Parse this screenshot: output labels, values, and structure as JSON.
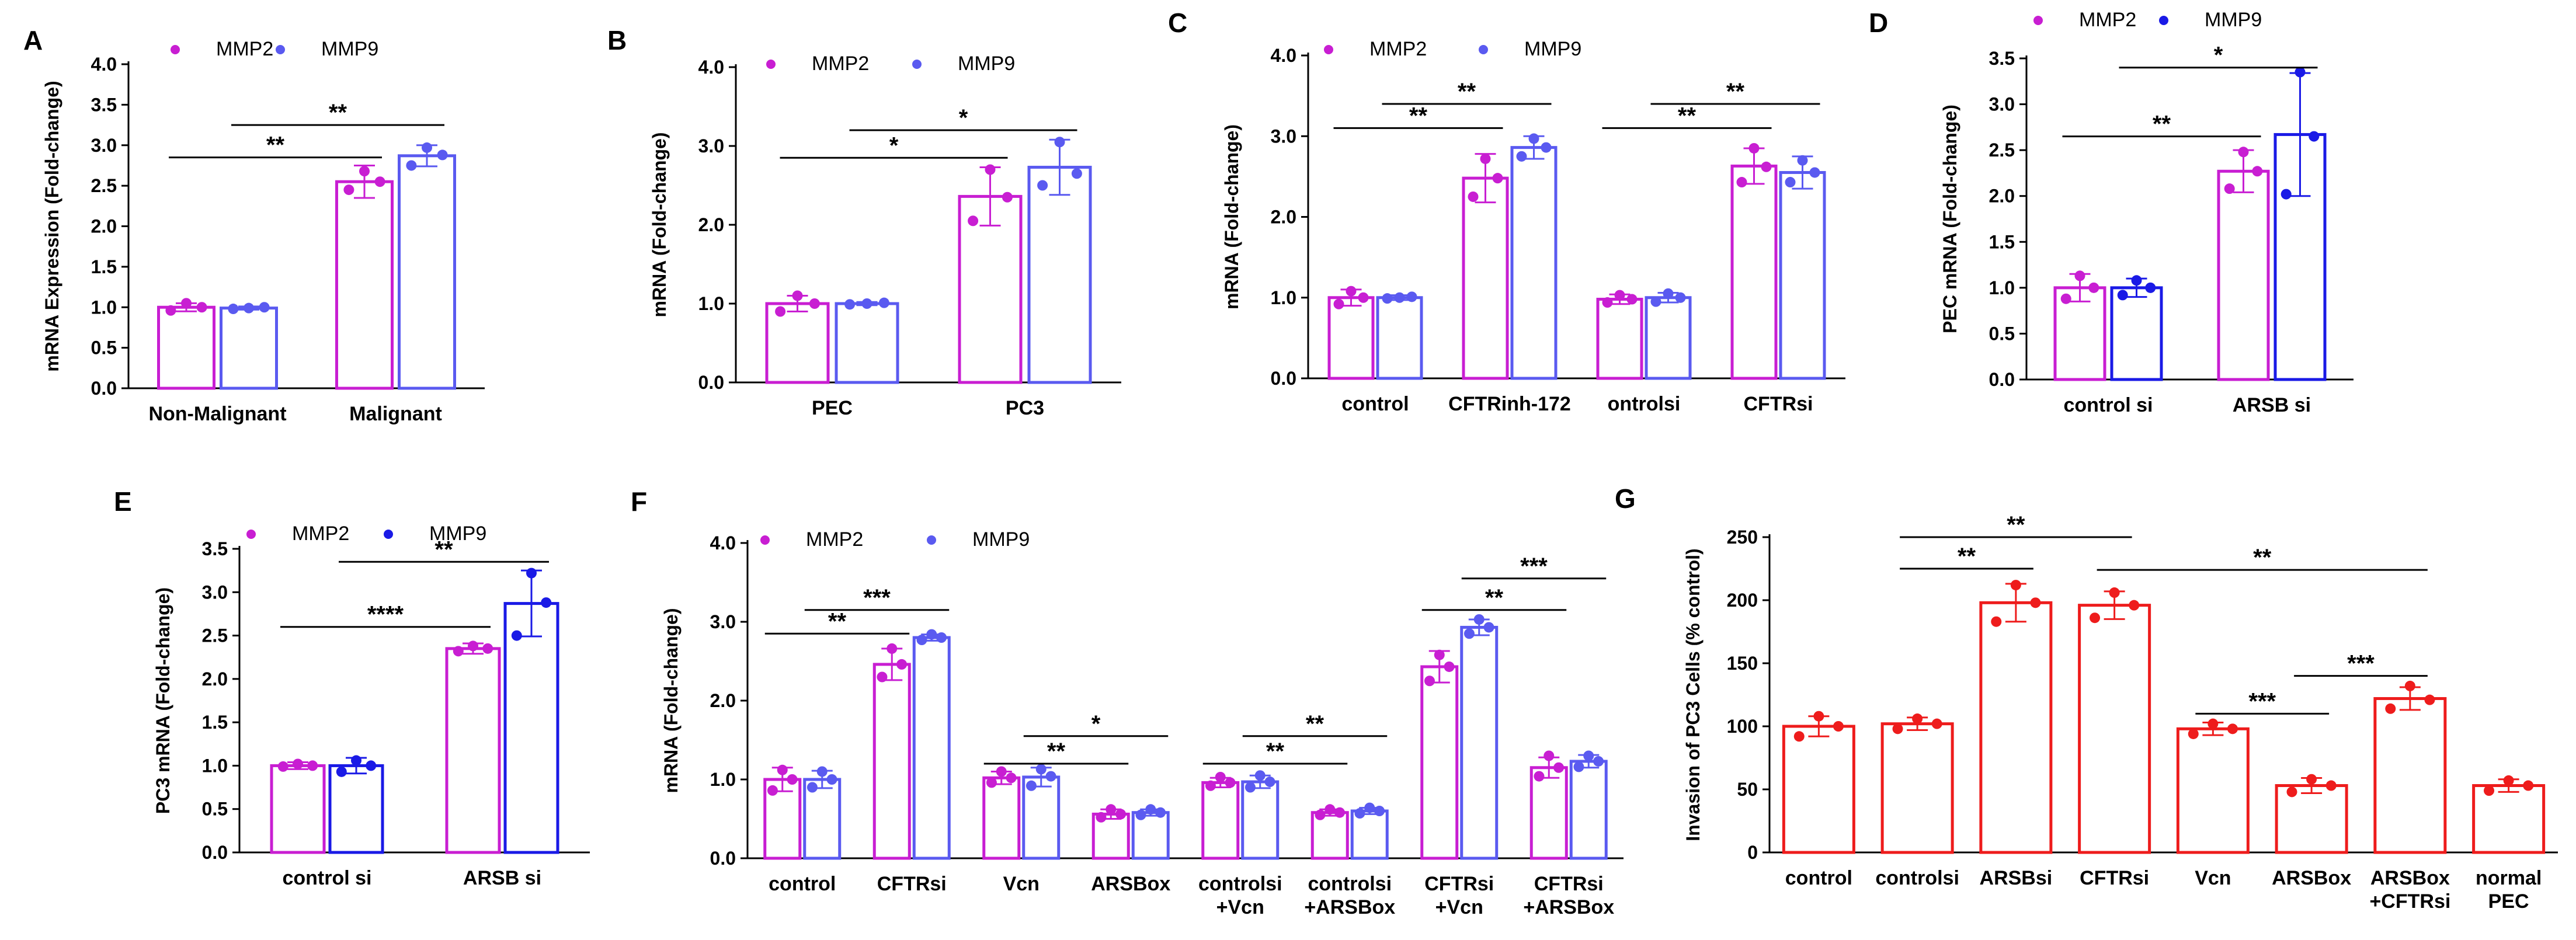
{
  "figure": {
    "background": "#ffffff"
  },
  "chart_data": [
    {
      "panel": "A",
      "type": "bar",
      "ylabel": "mRNA Expression (Fold-change)",
      "ylim": [
        0,
        4.0
      ],
      "yticks": [
        "0.0",
        "0.5",
        "1.0",
        "1.5",
        "2.0",
        "2.5",
        "3.0",
        "3.5",
        "4.0"
      ],
      "categories": [
        "Non-Malignant",
        "Malignant"
      ],
      "series": [
        {
          "name": "MMP2",
          "color": "#c81ed2",
          "values": [
            1.0,
            2.55
          ],
          "err": [
            0.05,
            0.2
          ],
          "points": [
            [
              0.96,
              1.05,
              1.0
            ],
            [
              2.45,
              2.68,
              2.55
            ]
          ]
        },
        {
          "name": "MMP9",
          "color": "#5a5af0",
          "values": [
            0.99,
            2.87
          ],
          "err": [
            0.02,
            0.13
          ],
          "points": [
            [
              0.98,
              0.99,
              1.0
            ],
            [
              2.75,
              2.97,
              2.88
            ]
          ]
        }
      ],
      "annotations": [
        {
          "text": "**",
          "from": [
            0,
            0
          ],
          "to": [
            1,
            0
          ],
          "y": 2.85
        },
        {
          "text": "**",
          "from": [
            0,
            1
          ],
          "to": [
            1,
            1
          ],
          "y": 3.25
        }
      ]
    },
    {
      "panel": "B",
      "type": "bar",
      "ylabel": "mRNA (Fold-change)",
      "ylim": [
        0,
        4.0
      ],
      "yticks": [
        "0.0",
        "1.0",
        "2.0",
        "3.0",
        "4.0"
      ],
      "categories": [
        "PEC",
        "PC3"
      ],
      "series": [
        {
          "name": "MMP2",
          "color": "#c81ed2",
          "values": [
            1.0,
            2.36
          ],
          "err": [
            0.1,
            0.37
          ],
          "points": [
            [
              0.9,
              1.1,
              1.0
            ],
            [
              2.05,
              2.7,
              2.35
            ]
          ]
        },
        {
          "name": "MMP9",
          "color": "#5a5af0",
          "values": [
            1.0,
            2.73
          ],
          "err": [
            0.02,
            0.35
          ],
          "points": [
            [
              0.99,
              1.0,
              1.01
            ],
            [
              2.5,
              3.05,
              2.65
            ]
          ]
        }
      ],
      "annotations": [
        {
          "text": "*",
          "from": [
            0,
            0
          ],
          "to": [
            1,
            0
          ],
          "y": 2.85
        },
        {
          "text": "*",
          "from": [
            0,
            1
          ],
          "to": [
            1,
            1
          ],
          "y": 3.2
        }
      ]
    },
    {
      "panel": "C",
      "type": "bar",
      "ylabel": "mRNA (Fold-change)",
      "ylim": [
        0,
        4.0
      ],
      "yticks": [
        "0.0",
        "1.0",
        "2.0",
        "3.0",
        "4.0"
      ],
      "categories": [
        "control",
        "CFTRinh-172",
        "ontrolsi",
        "CFTRsi"
      ],
      "series": [
        {
          "name": "MMP2",
          "color": "#c81ed2",
          "values": [
            1.0,
            2.48,
            0.98,
            2.63
          ],
          "err": [
            0.1,
            0.3,
            0.06,
            0.22
          ],
          "points": [
            [
              0.92,
              1.08,
              1.0
            ],
            [
              2.25,
              2.72,
              2.48
            ],
            [
              0.94,
              1.03,
              0.98
            ],
            [
              2.43,
              2.85,
              2.62
            ]
          ]
        },
        {
          "name": "MMP9",
          "color": "#5a5af0",
          "values": [
            1.0,
            2.86,
            1.0,
            2.55
          ],
          "err": [
            0.03,
            0.14,
            0.06,
            0.2
          ],
          "points": [
            [
              0.99,
              1.0,
              1.01
            ],
            [
              2.75,
              2.97,
              2.86
            ],
            [
              0.95,
              1.05,
              1.0
            ],
            [
              2.43,
              2.7,
              2.55
            ]
          ]
        }
      ],
      "annotations": [
        {
          "text": "**",
          "from": [
            0,
            0
          ],
          "to": [
            1,
            0
          ],
          "y": 3.1
        },
        {
          "text": "**",
          "from": [
            0,
            1
          ],
          "to": [
            1,
            1
          ],
          "y": 3.4
        },
        {
          "text": "**",
          "from": [
            2,
            0
          ],
          "to": [
            3,
            0
          ],
          "y": 3.1
        },
        {
          "text": "**",
          "from": [
            2,
            1
          ],
          "to": [
            3,
            1
          ],
          "y": 3.4
        }
      ]
    },
    {
      "panel": "D",
      "type": "bar",
      "ylabel": "PEC mRNA (Fold-change)",
      "ylim": [
        0,
        3.5
      ],
      "yticks": [
        "0.0",
        "0.5",
        "1.0",
        "1.5",
        "2.0",
        "2.5",
        "3.0",
        "3.5"
      ],
      "categories": [
        "control si",
        "ARSB si"
      ],
      "series": [
        {
          "name": "MMP2",
          "color": "#c81ed2",
          "values": [
            1.0,
            2.27
          ],
          "err": [
            0.15,
            0.23
          ],
          "points": [
            [
              0.88,
              1.13,
              1.0
            ],
            [
              2.08,
              2.48,
              2.27
            ]
          ]
        },
        {
          "name": "MMP9",
          "color": "#1a1ae6",
          "values": [
            1.0,
            2.67
          ],
          "err": [
            0.1,
            0.67
          ],
          "points": [
            [
              0.92,
              1.08,
              1.0
            ],
            [
              2.02,
              3.35,
              2.65
            ]
          ]
        }
      ],
      "annotations": [
        {
          "text": "**",
          "from": [
            0,
            0
          ],
          "to": [
            1,
            0
          ],
          "y": 2.65
        },
        {
          "text": "*",
          "from": [
            0,
            1
          ],
          "to": [
            1,
            1
          ],
          "y": 3.4
        }
      ]
    },
    {
      "panel": "E",
      "type": "bar",
      "ylabel": "PC3 mRNA (Fold-change)",
      "ylim": [
        0,
        3.5
      ],
      "yticks": [
        "0.0",
        "0.5",
        "1.0",
        "1.5",
        "2.0",
        "2.5",
        "3.0",
        "3.5"
      ],
      "categories": [
        "control si",
        "ARSB si"
      ],
      "series": [
        {
          "name": "MMP2",
          "color": "#c81ed2",
          "values": [
            1.0,
            2.35
          ],
          "err": [
            0.04,
            0.06
          ],
          "points": [
            [
              0.99,
              1.02,
              1.0
            ],
            [
              2.32,
              2.38,
              2.35
            ]
          ]
        },
        {
          "name": "MMP9",
          "color": "#1a1ae6",
          "values": [
            1.0,
            2.87
          ],
          "err": [
            0.09,
            0.38
          ],
          "points": [
            [
              0.93,
              1.06,
              1.0
            ],
            [
              2.5,
              3.22,
              2.88
            ]
          ]
        }
      ],
      "annotations": [
        {
          "text": "****",
          "from": [
            0,
            0
          ],
          "to": [
            1,
            0
          ],
          "y": 2.6
        },
        {
          "text": "**",
          "from": [
            0,
            1
          ],
          "to": [
            1,
            1
          ],
          "y": 3.35
        }
      ]
    },
    {
      "panel": "F",
      "type": "bar",
      "ylabel": "mRNA (Fold-change)",
      "ylim": [
        0,
        4.0
      ],
      "yticks": [
        "0.0",
        "1.0",
        "2.0",
        "3.0",
        "4.0"
      ],
      "categories": [
        "control",
        "CFTRsi",
        "Vcn",
        "ARSBox",
        "controlsi\n+Vcn",
        "controlsi\n+ARSBox",
        "CFTRsi\n+Vcn",
        "CFTRsi\n+ARSBox"
      ],
      "series": [
        {
          "name": "MMP2",
          "color": "#c81ed2",
          "values": [
            1.0,
            2.46,
            1.02,
            0.56,
            0.96,
            0.58,
            2.43,
            1.15
          ],
          "err": [
            0.15,
            0.2,
            0.08,
            0.06,
            0.06,
            0.04,
            0.2,
            0.13
          ],
          "points": [
            [
              0.86,
              1.12,
              1.0
            ],
            [
              2.3,
              2.66,
              2.46
            ],
            [
              0.96,
              1.1,
              1.02
            ],
            [
              0.52,
              0.62,
              0.56
            ],
            [
              0.92,
              1.03,
              0.96
            ],
            [
              0.55,
              0.62,
              0.58
            ],
            [
              2.25,
              2.58,
              2.43
            ],
            [
              1.04,
              1.3,
              1.15
            ]
          ]
        },
        {
          "name": "MMP9",
          "color": "#5a5af0",
          "values": [
            1.0,
            2.8,
            1.03,
            0.58,
            0.97,
            0.6,
            2.93,
            1.23
          ],
          "err": [
            0.11,
            0.04,
            0.12,
            0.04,
            0.08,
            0.04,
            0.1,
            0.08
          ],
          "points": [
            [
              0.9,
              1.1,
              1.0
            ],
            [
              2.77,
              2.84,
              2.8
            ],
            [
              0.92,
              1.13,
              1.04
            ],
            [
              0.55,
              0.62,
              0.58
            ],
            [
              0.9,
              1.05,
              0.97
            ],
            [
              0.57,
              0.64,
              0.6
            ],
            [
              2.85,
              3.03,
              2.93
            ],
            [
              1.16,
              1.3,
              1.23
            ]
          ]
        }
      ],
      "annotations": [
        {
          "text": "**",
          "from": [
            0,
            0
          ],
          "to": [
            1,
            0
          ],
          "y": 2.85
        },
        {
          "text": "***",
          "from": [
            0,
            1
          ],
          "to": [
            1,
            1
          ],
          "y": 3.15
        },
        {
          "text": "**",
          "from": [
            2,
            0
          ],
          "to": [
            3,
            0
          ],
          "y": 1.2
        },
        {
          "text": "*",
          "from": [
            2,
            1
          ],
          "to": [
            3,
            1
          ],
          "y": 1.55
        },
        {
          "text": "**",
          "from": [
            4,
            0
          ],
          "to": [
            5,
            0
          ],
          "y": 1.2
        },
        {
          "text": "**",
          "from": [
            4,
            1
          ],
          "to": [
            5,
            1
          ],
          "y": 1.55
        },
        {
          "text": "**",
          "from": [
            6,
            0
          ],
          "to": [
            7,
            0
          ],
          "y": 3.15
        },
        {
          "text": "***",
          "from": [
            6,
            1
          ],
          "to": [
            7,
            1
          ],
          "y": 3.55
        }
      ]
    },
    {
      "panel": "G",
      "type": "bar",
      "ylabel": "Invasion of PC3 Cells (% control)",
      "ylim": [
        0,
        250
      ],
      "yticks": [
        "0",
        "50",
        "100",
        "150",
        "200",
        "250"
      ],
      "categories": [
        "control",
        "controlsi",
        "ARSBsi",
        "CFTRsi",
        "Vcn",
        "ARSBox",
        "ARSBox\n+CFTRsi",
        "normal\nPEC"
      ],
      "series": [
        {
          "name": "",
          "color": "#ee1c1c",
          "values": [
            100,
            102,
            198,
            196,
            98,
            53,
            122,
            53
          ],
          "err": [
            8,
            5,
            15,
            11,
            5,
            6,
            9,
            5
          ],
          "points": [
            [
              92,
              108,
              100
            ],
            [
              98,
              106,
              102
            ],
            [
              183,
              212,
              198
            ],
            [
              186,
              206,
              196
            ],
            [
              94,
              102,
              98
            ],
            [
              48,
              58,
              53
            ],
            [
              114,
              132,
              121
            ],
            [
              49,
              57,
              53
            ]
          ]
        }
      ],
      "annotations": [
        {
          "text": "**",
          "from": [
            1,
            0
          ],
          "to": [
            2,
            0
          ],
          "y": 225
        },
        {
          "text": "**",
          "from": [
            1,
            0
          ],
          "to": [
            3,
            0
          ],
          "y": 250
        },
        {
          "text": "**",
          "from": [
            3,
            0
          ],
          "to": [
            6,
            0
          ],
          "y": 224
        },
        {
          "text": "***",
          "from": [
            4,
            0
          ],
          "to": [
            5,
            0
          ],
          "y": 110
        },
        {
          "text": "***",
          "from": [
            5,
            0
          ],
          "to": [
            6,
            0
          ],
          "y": 140
        }
      ]
    }
  ]
}
